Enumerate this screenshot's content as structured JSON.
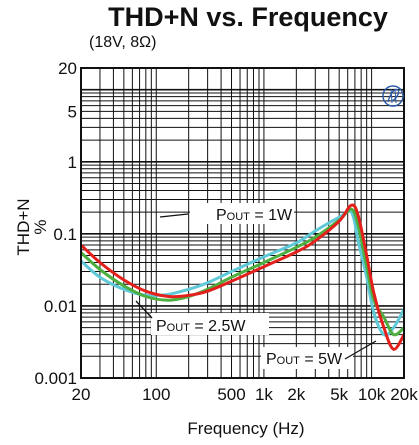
{
  "chart_data": {
    "type": "line",
    "title": "THD+N vs. Frequency",
    "subtitle": "(18V, 8Ω)",
    "xlabel": "Frequency (Hz)",
    "ylabel": "THD+N\n%",
    "x_scale": "log",
    "y_scale": "log",
    "xlim": [
      20,
      20000
    ],
    "ylim": [
      0.001,
      20
    ],
    "grid": true,
    "x_ticks": [
      {
        "value": 20,
        "label": "20"
      },
      {
        "value": 100,
        "label": "100"
      },
      {
        "value": 500,
        "label": "500"
      },
      {
        "value": 1000,
        "label": "1k"
      },
      {
        "value": 2000,
        "label": "2k"
      },
      {
        "value": 5000,
        "label": "5k"
      },
      {
        "value": 10000,
        "label": "10k"
      },
      {
        "value": 20000,
        "label": "20k"
      }
    ],
    "y_ticks": [
      {
        "value": 20,
        "label": "20"
      },
      {
        "value": 5,
        "label": "5"
      },
      {
        "value": 1,
        "label": "1"
      },
      {
        "value": 0.1,
        "label": "0.1"
      },
      {
        "value": 0.01,
        "label": "0.01"
      },
      {
        "value": 0.001,
        "label": "0.001"
      }
    ],
    "series": [
      {
        "color": "#5fc9d8",
        "x": [
          20,
          30,
          50,
          80,
          130,
          200,
          300,
          500,
          1000,
          2000,
          3000,
          5000,
          6500,
          7500,
          9000,
          10500,
          13000,
          16000,
          20000
        ],
        "y": [
          0.042,
          0.025,
          0.017,
          0.014,
          0.0145,
          0.017,
          0.021,
          0.03,
          0.048,
          0.075,
          0.11,
          0.17,
          0.2,
          0.08,
          0.025,
          0.008,
          0.004,
          0.005,
          0.009
        ]
      },
      {
        "color": "#4caf3f",
        "x": [
          20,
          30,
          50,
          80,
          130,
          200,
          300,
          500,
          1000,
          2000,
          3000,
          5000,
          6500,
          7500,
          9000,
          10500,
          13000,
          16000,
          20000
        ],
        "y": [
          0.055,
          0.032,
          0.019,
          0.0135,
          0.012,
          0.0135,
          0.017,
          0.025,
          0.04,
          0.065,
          0.09,
          0.155,
          0.22,
          0.13,
          0.035,
          0.012,
          0.007,
          0.004,
          0.005
        ]
      },
      {
        "color": "#e3201c",
        "x": [
          20,
          30,
          50,
          80,
          130,
          200,
          300,
          500,
          1000,
          2000,
          3000,
          5000,
          6500,
          7500,
          9000,
          10500,
          13000,
          16000,
          20000
        ],
        "y": [
          0.07,
          0.04,
          0.023,
          0.016,
          0.0135,
          0.014,
          0.016,
          0.022,
          0.035,
          0.056,
          0.08,
          0.15,
          0.25,
          0.18,
          0.05,
          0.015,
          0.005,
          0.0025,
          0.004
        ]
      }
    ],
    "annotations": [
      {
        "main": "P",
        "sub": "OUT",
        "rest": " = 1W"
      },
      {
        "main": "P",
        "sub": "OUT",
        "rest": " = 2.5W"
      },
      {
        "main": "P",
        "sub": "OUT",
        "rest": " = 5W"
      }
    ],
    "watermark": "PbFree logo",
    "colors": {
      "axis": "#111111",
      "grid": "#111111"
    }
  }
}
